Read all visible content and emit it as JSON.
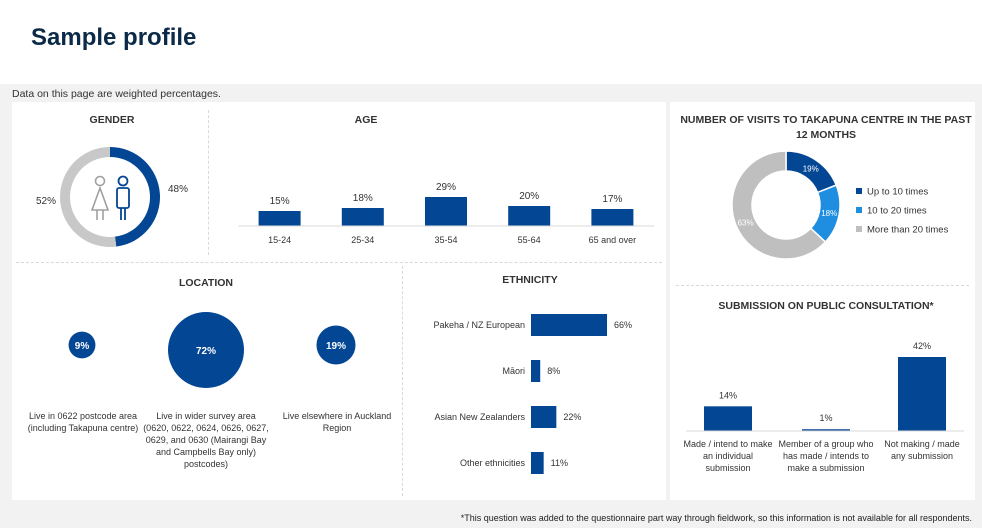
{
  "page": {
    "title": "Sample profile",
    "note": "Data on this page are weighted percentages.",
    "footnote": "*This question was added to the questionnaire part way through fieldwork, so this information is not available for all respondents."
  },
  "colors": {
    "primary": "#034694",
    "secondary": "#1f8ee0",
    "grey": "#c8c8c8",
    "light_grey": "#bfbfbf"
  },
  "chart_data": [
    {
      "id": "gender",
      "type": "pie",
      "title": "GENDER",
      "slices": [
        {
          "label": "female-icon",
          "value": 52,
          "display": "52%",
          "color": "#c8c8c8"
        },
        {
          "label": "male-icon",
          "value": 48,
          "display": "48%",
          "color": "#034694"
        }
      ]
    },
    {
      "id": "age",
      "type": "bar",
      "title": "AGE",
      "categories": [
        "15-24",
        "25-34",
        "35-54",
        "55-64",
        "65 and over"
      ],
      "values": [
        15,
        18,
        29,
        20,
        17
      ],
      "labels": [
        "15%",
        "18%",
        "29%",
        "20%",
        "17%"
      ]
    },
    {
      "id": "visits",
      "type": "pie",
      "title": "NUMBER OF VISITS TO TAKAPUNA CENTRE IN THE PAST 12 MONTHS",
      "slices": [
        {
          "label": "Up to 10 times",
          "value": 19,
          "display": "19%",
          "color": "#034694"
        },
        {
          "label": "10 to 20 times",
          "value": 18,
          "display": "18%",
          "color": "#1f8ee0"
        },
        {
          "label": "More than 20 times",
          "value": 63,
          "display": "63%",
          "color": "#bfbfbf"
        }
      ]
    },
    {
      "id": "location",
      "type": "bubble",
      "title": "LOCATION",
      "items": [
        {
          "value": 9,
          "display": "9%",
          "label": "Live in 0622 postcode area (including Takapuna centre)"
        },
        {
          "value": 72,
          "display": "72%",
          "label": "Live in wider survey area (0620, 0622, 0624, 0626, 0627, 0629, and 0630 (Mairangi Bay and Campbells Bay only) postcodes)"
        },
        {
          "value": 19,
          "display": "19%",
          "label": "Live elsewhere in Auckland Region"
        }
      ]
    },
    {
      "id": "ethnicity",
      "type": "bar",
      "orientation": "horizontal",
      "title": "ETHNICITY",
      "categories": [
        "Pakeha / NZ European",
        "Māori",
        "Asian New Zealanders",
        "Other ethnicities"
      ],
      "values": [
        66,
        8,
        22,
        11
      ],
      "labels": [
        "66%",
        "8%",
        "22%",
        "11%"
      ]
    },
    {
      "id": "submission",
      "type": "bar",
      "title": "SUBMISSION ON PUBLIC CONSULTATION*",
      "categories": [
        "Made / intend to make an individual submission",
        "Member of a group who has made / intends to make a submission",
        "Not making / made any submission"
      ],
      "values": [
        14,
        1,
        42
      ],
      "labels": [
        "14%",
        "1%",
        "42%"
      ]
    }
  ]
}
